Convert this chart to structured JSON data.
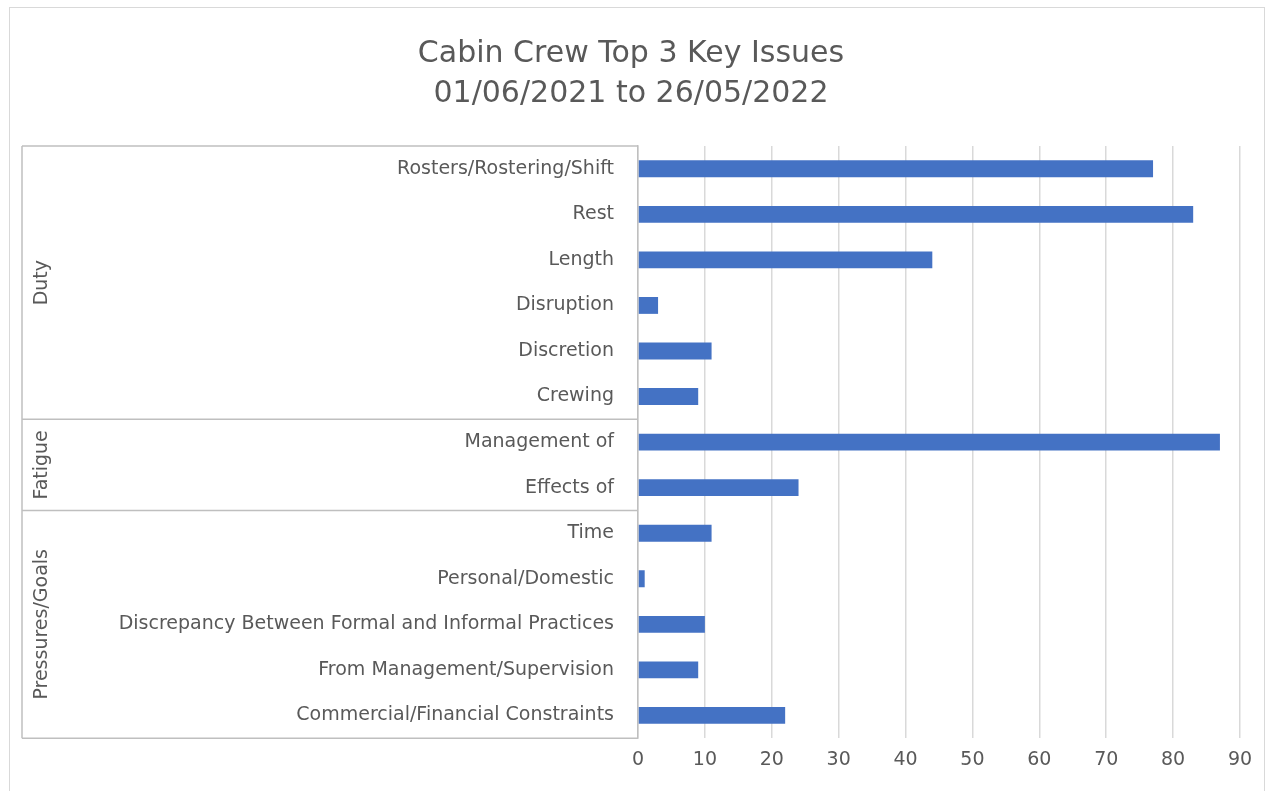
{
  "chart_data": {
    "type": "bar",
    "orientation": "horizontal",
    "title": "Cabin Crew Top 3 Key Issues",
    "subtitle": "01/06/2021 to 26/05/2022",
    "categories": [
      "Rosters/Rostering/Shift",
      "Rest",
      "Length",
      "Disruption",
      "Discretion",
      "Crewing",
      "Management of",
      "Effects of",
      "Time",
      "Personal/Domestic",
      "Discrepancy Between Formal and Informal Practices",
      "From Management/Supervision",
      "Commercial/Financial Constraints"
    ],
    "values": [
      77,
      83,
      44,
      3,
      11,
      9,
      87,
      24,
      11,
      1,
      10,
      9,
      22
    ],
    "color": "#4472c4",
    "xlim": [
      0,
      90
    ],
    "xticks": [
      0,
      10,
      20,
      30,
      40,
      50,
      60,
      70,
      80,
      90
    ],
    "grid": "x",
    "annotations": [
      "Duty",
      "Fatigue",
      "Pressures/Goals"
    ]
  }
}
